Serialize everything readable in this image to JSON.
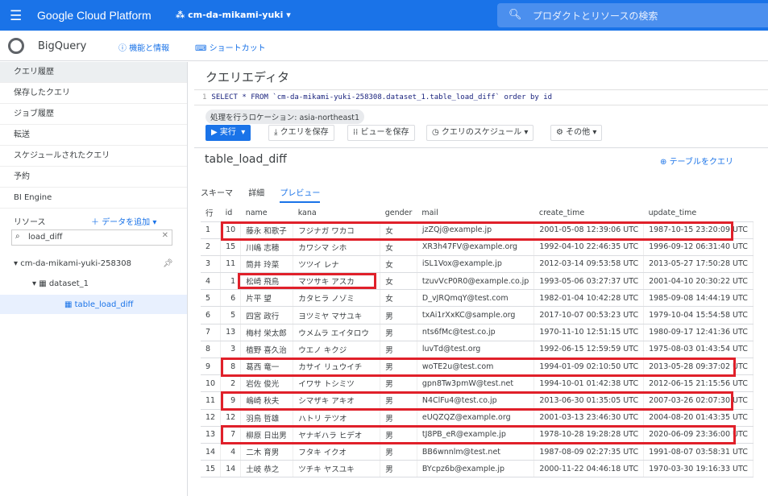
{
  "header": {
    "app_title": "Google Cloud Platform",
    "project": "cm-da-mikami-yuki",
    "search_placeholder": "プロダクトとリソースの検索"
  },
  "subheader": {
    "product": "BigQuery",
    "features": "機能と情報",
    "shortcuts": "ショートカット"
  },
  "sidebar": {
    "items": [
      {
        "label": "クエリ履歴"
      },
      {
        "label": "保存したクエリ"
      },
      {
        "label": "ジョブ履歴"
      },
      {
        "label": "転送"
      },
      {
        "label": "スケジュールされたクエリ"
      },
      {
        "label": "予約"
      },
      {
        "label": "BI Engine"
      }
    ],
    "resources_label": "リソース",
    "add_data": "データを追加",
    "filter_value": "load_diff",
    "tree": {
      "project": "cm-da-mikami-yuki-258308",
      "dataset": "dataset_1",
      "table": "table_load_diff"
    }
  },
  "editor": {
    "title": "クエリエディタ",
    "line_number": "1",
    "query": "SELECT * FROM `cm-da-mikami-yuki-258308.dataset_1.table_load_diff` order by id",
    "location": "処理を行うロケーション: asia-northeast1",
    "buttons": {
      "run": "実行",
      "save_query": "クエリを保存",
      "save_view": "ビューを保存",
      "schedule": "クエリのスケジュール",
      "more": "その他"
    }
  },
  "table_panel": {
    "name": "table_load_diff",
    "query_table": "テーブルをクエリ",
    "tabs": [
      {
        "label": "スキーマ"
      },
      {
        "label": "詳細"
      },
      {
        "label": "プレビュー"
      }
    ],
    "active_tab": "プレビュー"
  },
  "preview": {
    "columns": [
      "行",
      "id",
      "name",
      "kana",
      "gender",
      "mail",
      "create_time",
      "update_time"
    ],
    "rows": [
      [
        "1",
        "10",
        "藤永 和歌子",
        "フジナガ ワカコ",
        "女",
        "jzZQj@example.jp",
        "2001-05-08 12:39:06 UTC",
        "1987-10-15 23:20:09 UTC"
      ],
      [
        "2",
        "15",
        "川嶋 志穂",
        "カワシマ シホ",
        "女",
        "XR3h47FV@example.org",
        "1992-04-10 22:46:35 UTC",
        "1996-09-12 06:31:40 UTC"
      ],
      [
        "3",
        "11",
        "筒井 玲菜",
        "ツツイ レナ",
        "女",
        "iSL1Vox@example.jp",
        "2012-03-14 09:53:58 UTC",
        "2013-05-27 17:50:28 UTC"
      ],
      [
        "4",
        "1",
        "松崎 飛鳥",
        "マツサキ アスカ",
        "女",
        "tzuvVcP0R0@example.co.jp",
        "1993-05-06 03:27:37 UTC",
        "2001-04-10 20:30:22 UTC"
      ],
      [
        "5",
        "6",
        "片平 望",
        "カタヒラ ノゾミ",
        "女",
        "D_vJRQmqY@test.com",
        "1982-01-04 10:42:28 UTC",
        "1985-09-08 14:44:19 UTC"
      ],
      [
        "6",
        "5",
        "四宮 政行",
        "ヨツミヤ マサユキ",
        "男",
        "txAi1rXxKC@sample.org",
        "2017-10-07 00:53:23 UTC",
        "1979-10-04 15:54:58 UTC"
      ],
      [
        "7",
        "13",
        "梅村 栄太郎",
        "ウメムラ エイタロウ",
        "男",
        "nts6fMc@test.co.jp",
        "1970-11-10 12:51:15 UTC",
        "1980-09-17 12:41:36 UTC"
      ],
      [
        "8",
        "3",
        "植野 喜久治",
        "ウエノ キクジ",
        "男",
        "luvTd@test.org",
        "1992-06-15 12:59:59 UTC",
        "1975-08-03 01:43:54 UTC"
      ],
      [
        "9",
        "8",
        "葛西 竜一",
        "カサイ リュウイチ",
        "男",
        "woTE2u@test.com",
        "1994-01-09 02:10:50 UTC",
        "2013-05-28 09:37:02 UTC"
      ],
      [
        "10",
        "2",
        "岩佐 俊光",
        "イワサ トシミツ",
        "男",
        "gpn8Tw3pmW@test.net",
        "1994-10-01 01:42:38 UTC",
        "2012-06-15 21:15:56 UTC"
      ],
      [
        "11",
        "9",
        "嶋崎 秋夫",
        "シマザキ アキオ",
        "男",
        "N4ClFu4@test.co.jp",
        "2013-06-30 01:35:05 UTC",
        "2007-03-26 02:07:30 UTC"
      ],
      [
        "12",
        "12",
        "羽鳥 哲雄",
        "ハトリ テツオ",
        "男",
        "eUQZQZ@example.org",
        "2001-03-13 23:46:30 UTC",
        "2004-08-20 01:43:35 UTC"
      ],
      [
        "13",
        "7",
        "柳原 日出男",
        "ヤナギハラ ヒデオ",
        "男",
        "tJ8PB_eR@example.jp",
        "1978-10-28 19:28:28 UTC",
        "2020-06-09 23:36:00 UTC"
      ],
      [
        "14",
        "4",
        "二木 育男",
        "フタキ イクオ",
        "男",
        "BB6wnnlm@test.net",
        "1987-08-09 02:27:35 UTC",
        "1991-08-07 03:58:31 UTC"
      ],
      [
        "15",
        "14",
        "土岐 恭之",
        "ツチキ ヤスユキ",
        "男",
        "BYcpz6b@example.jp",
        "2000-11-22 04:46:18 UTC",
        "1970-03-30 19:16:33 UTC"
      ]
    ]
  },
  "colors": {
    "brand_blue": "#1a73e8",
    "highlight_red": "#e0202a"
  }
}
